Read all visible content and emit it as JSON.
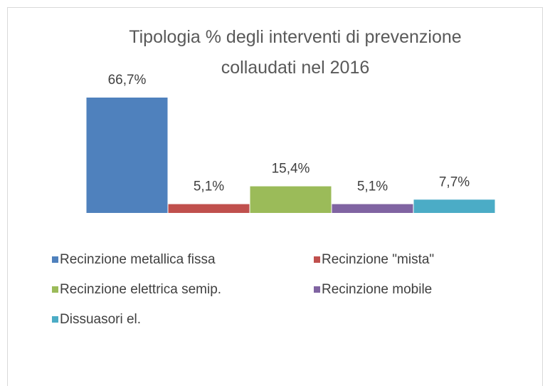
{
  "chart_data": {
    "type": "bar",
    "title": "Tipologia % degli interventi di prevenzione collaudati nel 2016",
    "series": [
      {
        "name": "Recinzione metallica fissa",
        "color": "#4f81bd",
        "values": [
          66.7
        ],
        "value_labels": [
          "66,7%"
        ]
      },
      {
        "name": "Recinzione \"mista\"",
        "color": "#c0504d",
        "values": [
          5.1
        ],
        "value_labels": [
          "5,1%"
        ]
      },
      {
        "name": "Recinzione elettrica semip.",
        "color": "#9bbb59",
        "values": [
          15.4
        ],
        "value_labels": [
          "15,4%"
        ]
      },
      {
        "name": "Recinzione mobile",
        "color": "#8064a2",
        "values": [
          5.1
        ],
        "value_labels": [
          "5,1%"
        ]
      },
      {
        "name": "Dissuasori el.",
        "color": "#4bacc6",
        "values": [
          7.7
        ],
        "value_labels": [
          "7,7%"
        ]
      }
    ]
  }
}
